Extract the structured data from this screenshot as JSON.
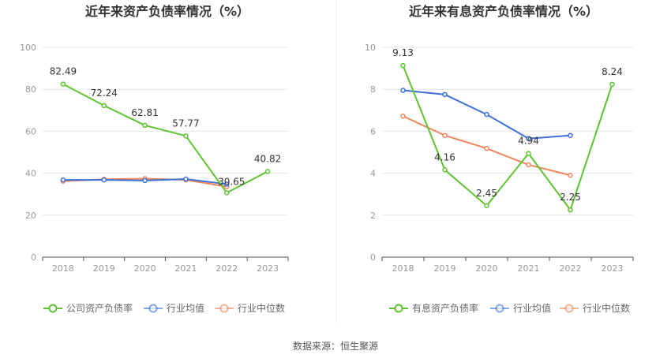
{
  "source_text": "数据来源：恒生聚源",
  "chart_data": [
    {
      "type": "line",
      "title": "近年来资产负债率情况（%）",
      "categories": [
        "2018",
        "2019",
        "2020",
        "2021",
        "2022",
        "2023"
      ],
      "ylim": [
        0,
        100
      ],
      "yticks": [
        0,
        20,
        40,
        60,
        80,
        100
      ],
      "grid": true,
      "legend_position": "bottom",
      "series": [
        {
          "name": "公司资产负债率",
          "color": "#5cc42f",
          "values": [
            82.49,
            72.24,
            62.81,
            57.77,
            30.65,
            40.82
          ],
          "labels": [
            "82.49",
            "72.24",
            "62.81",
            "57.77",
            "30.65",
            "40.82"
          ]
        },
        {
          "name": "行业均值",
          "color": "#3a70d8",
          "values": [
            36.8,
            36.8,
            36.5,
            37.2,
            34.8,
            null
          ]
        },
        {
          "name": "行业中位数",
          "color": "#f0855a",
          "values": [
            36.2,
            37.1,
            37.4,
            36.8,
            33.6,
            null
          ]
        }
      ]
    },
    {
      "type": "line",
      "title": "近年来有息资产负债率情况（%）",
      "categories": [
        "2018",
        "2019",
        "2020",
        "2021",
        "2022",
        "2023"
      ],
      "ylim": [
        0,
        10
      ],
      "yticks": [
        0,
        2,
        4,
        6,
        8,
        10
      ],
      "grid": true,
      "legend_position": "bottom",
      "series": [
        {
          "name": "有息资产负债率",
          "color": "#5cc42f",
          "values": [
            9.13,
            4.16,
            2.45,
            4.94,
            2.25,
            8.24
          ],
          "labels": [
            "9.13",
            "4.16",
            "2.45",
            "4.94",
            "2.25",
            "8.24"
          ]
        },
        {
          "name": "行业均值",
          "color": "#3a70d8",
          "values": [
            7.95,
            7.75,
            6.8,
            5.65,
            5.8,
            null
          ]
        },
        {
          "name": "行业中位数",
          "color": "#f0855a",
          "values": [
            6.72,
            5.8,
            5.18,
            4.4,
            3.9,
            null
          ]
        }
      ]
    }
  ]
}
